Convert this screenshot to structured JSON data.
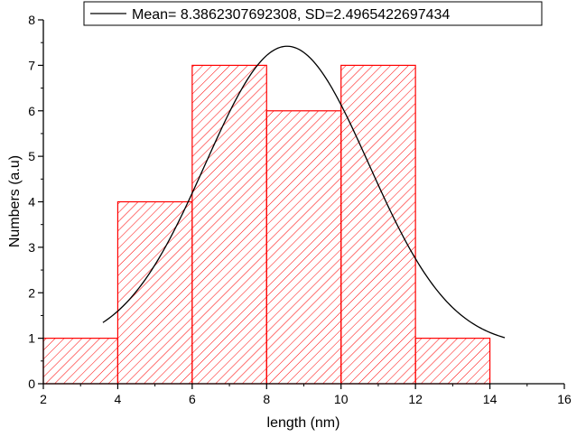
{
  "chart_data": {
    "type": "bar",
    "subtype": "histogram",
    "xlabel": "length (nm)",
    "ylabel": "Numbers (a.u)",
    "xlim": [
      2,
      16
    ],
    "ylim": [
      0,
      8
    ],
    "x_ticks": [
      2,
      4,
      6,
      8,
      10,
      12,
      14,
      16
    ],
    "y_ticks": [
      0,
      1,
      2,
      3,
      4,
      5,
      6,
      7,
      8
    ],
    "bins": [
      {
        "x0": 2,
        "x1": 4,
        "count": 1
      },
      {
        "x0": 4,
        "x1": 6,
        "count": 4
      },
      {
        "x0": 6,
        "x1": 8,
        "count": 7
      },
      {
        "x0": 8,
        "x1": 10,
        "count": 6
      },
      {
        "x0": 10,
        "x1": 12,
        "count": 7
      },
      {
        "x0": 12,
        "x1": 14,
        "count": 1
      }
    ],
    "fit": {
      "type": "normal",
      "x_range": [
        3.6,
        14.4
      ],
      "center": 8.55,
      "sigma": 2.2,
      "amplitude": 6.6,
      "baseline": 0.82
    },
    "legend": {
      "entries": [
        {
          "label": "Mean= 8.3862307692308, SD=2.4965422697434"
        }
      ],
      "placement": "top"
    },
    "colors": {
      "bar_edge": "#ff0000",
      "bar_hatch": "#ff0000",
      "fit_line": "#000000",
      "axis": "#000000"
    },
    "grid": false
  }
}
